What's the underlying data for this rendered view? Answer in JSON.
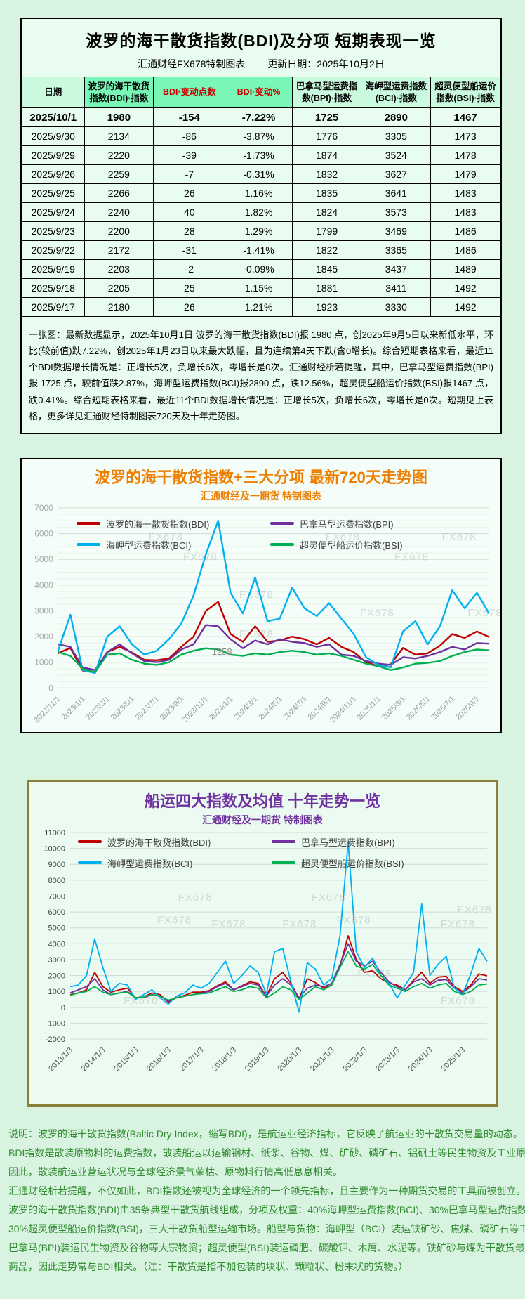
{
  "report": {
    "title": "波罗的海干散货指数(BDI)及分项 短期表现一览",
    "source_label": "汇通财经FX678特制图表",
    "update_label": "更新日期：2025年10月2日"
  },
  "table": {
    "headers": [
      "日期",
      "波罗的海干散货指数(BDI)·指数",
      "BDI·变动点数",
      "BDI·变动%",
      "巴拿马型运费指数(BPI)·指数",
      "海岬型运费指数(BCI)·指数",
      "超灵便型船运价指数(BSI)·指数"
    ],
    "rows": [
      [
        "2025/10/1",
        "1980",
        "-154",
        "-7.22%",
        "1725",
        "2890",
        "1467"
      ],
      [
        "2025/9/30",
        "2134",
        "-86",
        "-3.87%",
        "1776",
        "3305",
        "1473"
      ],
      [
        "2025/9/29",
        "2220",
        "-39",
        "-1.73%",
        "1874",
        "3524",
        "1478"
      ],
      [
        "2025/9/26",
        "2259",
        "-7",
        "-0.31%",
        "1832",
        "3627",
        "1479"
      ],
      [
        "2025/9/25",
        "2266",
        "26",
        "1.16%",
        "1835",
        "3641",
        "1483"
      ],
      [
        "2025/9/24",
        "2240",
        "40",
        "1.82%",
        "1824",
        "3573",
        "1483"
      ],
      [
        "2025/9/23",
        "2200",
        "28",
        "1.29%",
        "1799",
        "3469",
        "1486"
      ],
      [
        "2025/9/22",
        "2172",
        "-31",
        "-1.41%",
        "1822",
        "3365",
        "1486"
      ],
      [
        "2025/9/19",
        "2203",
        "-2",
        "-0.09%",
        "1845",
        "3437",
        "1489"
      ],
      [
        "2025/9/18",
        "2205",
        "25",
        "1.15%",
        "1881",
        "3411",
        "1492"
      ],
      [
        "2025/9/17",
        "2180",
        "26",
        "1.21%",
        "1923",
        "3330",
        "1492"
      ]
    ]
  },
  "summary": "一张图：最新数据显示，2025年10月1日 波罗的海干散货指数(BDI)报 1980 点，创2025年9月5日以来新低水平，环比(较前值)跌7.22%，创2025年1月23日以来最大跌幅，且为连续第4天下跌(含0增长)。综合短期表格来看，最近11个BDI数据增长情况是：正增长5次，负增长6次，零增长是0次。汇通财经析若提醒，其中，巴拿马型运费指数(BPI)报 1725 点，较前值跌2.87%，海岬型运费指数(BCI)报2890 点，跌12.56%，超灵便型船运价指数(BSI)报1467 点，跌0.41%。综合短期表格来看，最近11个BDI数据增长情况是：正增长5次，负增长6次，零增长是0次。短期见上表格，更多详见汇通财经特制图表720天及十年走势图。",
  "colors": {
    "bdi": "#c00000",
    "bpi": "#7030a0",
    "bci": "#00b0f0",
    "bsi": "#00b050",
    "chart1_accent": "#ee7e00",
    "chart2_accent": "#7030a0"
  },
  "watermark_text": "FX678",
  "chart_data": [
    {
      "type": "line",
      "title": "波罗的海干散货指数+三大分项  最新720天走势图",
      "subtitle": "汇通财经及一期货 特制图表",
      "ylim": [
        0,
        7000
      ],
      "ytick_step": 1000,
      "grid": true,
      "legend_position": "top",
      "x_labels": [
        "2022/11/1",
        "2023/1/1",
        "2023/3/1",
        "2023/5/1",
        "2023/7/1",
        "2023/9/1",
        "2023/11/1",
        "2024/1/1",
        "2024/3/1",
        "2024/5/1",
        "2024/7/1",
        "2024/9/1",
        "2024/11/1",
        "2025/1/1",
        "2025/3/1",
        "2025/5/1",
        "2025/7/1",
        "2025/9/1"
      ],
      "x_label_indices": [
        0,
        2,
        4,
        6,
        8,
        10,
        12,
        14,
        16,
        18,
        20,
        22,
        24,
        26,
        28,
        30,
        32,
        34
      ],
      "annotation": {
        "text": "1258",
        "fx": 0.38,
        "value": 1300
      },
      "watermarks": [
        [
          0.25,
          0.18
        ],
        [
          0.33,
          0.29
        ],
        [
          0.46,
          0.5
        ],
        [
          0.66,
          0.18
        ],
        [
          0.93,
          0.18
        ],
        [
          0.82,
          0.29
        ],
        [
          0.74,
          0.6
        ],
        [
          0.99,
          0.6
        ],
        [
          0.46,
          0.72
        ]
      ],
      "series": [
        {
          "name": "波罗的海干散货指数(BDI)",
          "color": "#c00000",
          "values": [
            1355,
            1560,
            680,
            605,
            1400,
            1600,
            1380,
            1100,
            1080,
            1150,
            1600,
            2000,
            3000,
            3346,
            2100,
            1800,
            2400,
            1800,
            1850,
            2000,
            1900,
            1700,
            1950,
            1600,
            1400,
            1000,
            850,
            920,
            1560,
            1300,
            1350,
            1650,
            2100,
            1950,
            2200,
            1980
          ]
        },
        {
          "name": "巴拿马型运费指数(BPI)",
          "color": "#7030a0",
          "values": [
            1700,
            1600,
            800,
            700,
            1400,
            1700,
            1350,
            1050,
            1000,
            1100,
            1500,
            1700,
            2450,
            2400,
            1900,
            1550,
            1850,
            1700,
            1900,
            1800,
            1750,
            1600,
            1700,
            1300,
            1250,
            1050,
            950,
            900,
            1200,
            1150,
            1250,
            1400,
            1600,
            1500,
            1750,
            1725
          ]
        },
        {
          "name": "海岬型运费指数(BCI)",
          "color": "#00b0f0",
          "values": [
            1450,
            2850,
            700,
            580,
            2000,
            2400,
            1700,
            1300,
            1450,
            1900,
            2500,
            3600,
            5200,
            6500,
            3700,
            2900,
            4300,
            2600,
            2700,
            3900,
            3100,
            2800,
            3300,
            2700,
            2100,
            1200,
            900,
            800,
            2200,
            2600,
            1700,
            2400,
            3800,
            3100,
            3700,
            2890
          ]
        },
        {
          "name": "超灵便型船运价指数(BSI)",
          "color": "#00b050",
          "values": [
            1400,
            1250,
            750,
            620,
            1300,
            1350,
            1100,
            950,
            900,
            1000,
            1300,
            1450,
            1550,
            1500,
            1300,
            1250,
            1350,
            1300,
            1400,
            1450,
            1400,
            1300,
            1350,
            1250,
            1100,
            950,
            850,
            700,
            800,
            950,
            980,
            1050,
            1250,
            1400,
            1500,
            1467
          ]
        }
      ]
    },
    {
      "type": "line",
      "title": "船运四大指数及均值 十年走势一览",
      "subtitle": "汇通财经及一期货 特制图表",
      "ylim": [
        -2000,
        11000
      ],
      "ytick_step": 1000,
      "grid": true,
      "legend_position": "top",
      "x_labels": [
        "2013/1/3",
        "2014/1/3",
        "2015/1/3",
        "2016/1/3",
        "2017/1/3",
        "2018/1/3",
        "2019/1/3",
        "2020/1/3",
        "2021/1/3",
        "2022/1/3",
        "2023/1/3",
        "2024/1/3",
        "2025/1/3"
      ],
      "x_label_indices": [
        0,
        4,
        8,
        12,
        16,
        20,
        24,
        28,
        32,
        36,
        40,
        44,
        48
      ],
      "watermarks": [
        [
          0.3,
          0.33
        ],
        [
          0.62,
          0.33
        ],
        [
          0.25,
          0.44
        ],
        [
          0.38,
          0.46
        ],
        [
          0.55,
          0.46
        ],
        [
          0.68,
          0.44
        ],
        [
          0.97,
          0.39
        ],
        [
          0.93,
          0.46
        ],
        [
          0.73,
          0.7
        ],
        [
          0.17,
          0.83
        ],
        [
          0.93,
          0.83
        ]
      ],
      "series": [
        {
          "name": "波罗的海干散货指数(BDI)",
          "color": "#c00000",
          "values": [
            800,
            900,
            1100,
            2200,
            1300,
            950,
            1100,
            1200,
            600,
            650,
            900,
            800,
            320,
            600,
            750,
            950,
            950,
            1050,
            1350,
            1600,
            1100,
            1350,
            1600,
            1500,
            700,
            1800,
            2200,
            1500,
            550,
            1800,
            1550,
            1200,
            1400,
            2600,
            4500,
            3000,
            2200,
            2300,
            1800,
            1500,
            1400,
            1100,
            1700,
            2200,
            1500,
            1900,
            1950,
            1300,
            1000,
            1400,
            2100,
            1980
          ]
        },
        {
          "name": "巴拿马型运费指数(BPI)",
          "color": "#7030a0",
          "values": [
            900,
            1100,
            1300,
            1800,
            1100,
            800,
            900,
            1000,
            600,
            600,
            800,
            700,
            400,
            600,
            700,
            800,
            900,
            1000,
            1300,
            1500,
            1100,
            1300,
            1500,
            1400,
            700,
            1400,
            1800,
            1400,
            600,
            1200,
            1400,
            1300,
            1500,
            2700,
            4000,
            2900,
            2600,
            2900,
            2200,
            1600,
            1300,
            1100,
            1600,
            1800,
            1400,
            1700,
            1750,
            1200,
            900,
            1300,
            1800,
            1725
          ]
        },
        {
          "name": "海岬型运费指数(BCI)",
          "color": "#00b0f0",
          "values": [
            1300,
            1400,
            2000,
            4300,
            2500,
            1000,
            1500,
            1400,
            500,
            800,
            1100,
            600,
            200,
            700,
            900,
            1400,
            1200,
            1500,
            2200,
            2900,
            1500,
            2000,
            2600,
            2200,
            800,
            3500,
            3700,
            1600,
            -300,
            2800,
            2400,
            1400,
            1800,
            4500,
            10400,
            3500,
            2500,
            3100,
            2000,
            1500,
            600,
            1400,
            2200,
            6500,
            2000,
            2700,
            3200,
            1200,
            800,
            2100,
            3700,
            2890
          ]
        },
        {
          "name": "超灵便型船运价指数(BSI)",
          "color": "#00b050",
          "values": [
            750,
            900,
            1000,
            1300,
            950,
            800,
            900,
            950,
            600,
            650,
            800,
            700,
            450,
            600,
            700,
            800,
            850,
            900,
            1100,
            1300,
            1000,
            1100,
            1300,
            1200,
            600,
            900,
            1300,
            1100,
            500,
            900,
            1300,
            1100,
            1400,
            2500,
            3500,
            2600,
            2400,
            2700,
            2000,
            1400,
            1200,
            1000,
            1300,
            1500,
            1200,
            1400,
            1500,
            1000,
            800,
            1000,
            1400,
            1467
          ]
        }
      ]
    }
  ],
  "notes": [
    "说明：波罗的海干散货指数(Baltic Dry Index，缩写BDI)，是航运业经济指标，它反映了航运业的干散货交易量的动态。",
    "BDI指数是散装原物料的运费指数，散装船运以运输钢材、纸浆、谷物、煤、矿砂、磷矿石、铝矾土等民生物资及工业原料为主。",
    "因此，散装航运业营运状况与全球经济景气荣枯、原物料行情高低息息相关。",
    "汇通财经析若提醒，不仅如此，BDI指数还被视为全球经济的一个领先指标，且主要作为一种期货交易的工具而被创立。",
    "波罗的海干散货指数(BDI)由35条典型干散货航线组成，分项及权重：40%海岬型运费指数(BCI)、30%巴拿马型运费指数(BPI)、",
    "30%超灵便型船运价指数(BSI)，三大干散货船型运输市场。船型与货物：海岬型（BCI）装运铁矿砂、焦煤、磷矿石等工业原料；",
    "巴拿马(BPI)装运民生物资及谷物等大宗物资；超灵便型(BSI)装运磷肥、碳酸钾、木屑、水泥等。铁矿砂与煤为干散货最大宗",
    "商品，因此走势常与BDI相关。（注：干散货是指不加包装的块状、颗粒状、粉末状的货物。）"
  ]
}
